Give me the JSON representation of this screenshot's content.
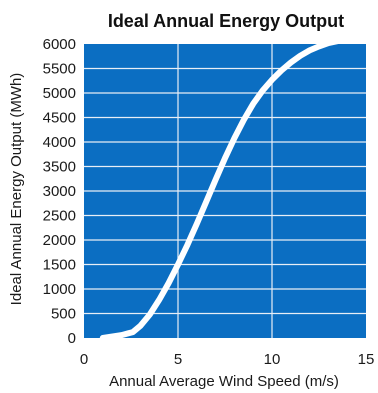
{
  "chart_data": {
    "type": "line",
    "title": "Ideal Annual Energy Output",
    "xlabel": "Annual Average Wind Speed (m/s)",
    "ylabel": "Ideal Annual Energy Output (MWh)",
    "xlim": [
      0,
      15
    ],
    "ylim": [
      0,
      6000
    ],
    "xticks": [
      "0",
      "5",
      "10",
      "15"
    ],
    "yticks": [
      "0",
      "500",
      "1000",
      "1500",
      "2000",
      "2500",
      "3000",
      "3500",
      "4000",
      "4500",
      "5000",
      "5500",
      "6000"
    ],
    "grid": true,
    "series": [
      {
        "x": [
          1.0,
          2.0,
          2.6,
          3.0,
          3.5,
          4.0,
          4.5,
          5.0,
          5.5,
          6.0,
          6.5,
          7.0,
          7.5,
          8.0,
          8.5,
          9.0,
          9.5,
          10.0,
          10.5,
          11.0,
          11.5,
          12.0,
          12.5,
          13.0,
          13.5
        ],
        "values": [
          0,
          60,
          120,
          250,
          480,
          780,
          1120,
          1500,
          1900,
          2330,
          2780,
          3230,
          3670,
          4080,
          4450,
          4780,
          5050,
          5270,
          5460,
          5620,
          5760,
          5870,
          5950,
          6020,
          6060
        ]
      }
    ],
    "colors": {
      "plot_background": "#0b6ec2",
      "gridline": "#e8eef6",
      "line": "#ffffff",
      "text": "#1a1a1a"
    }
  }
}
